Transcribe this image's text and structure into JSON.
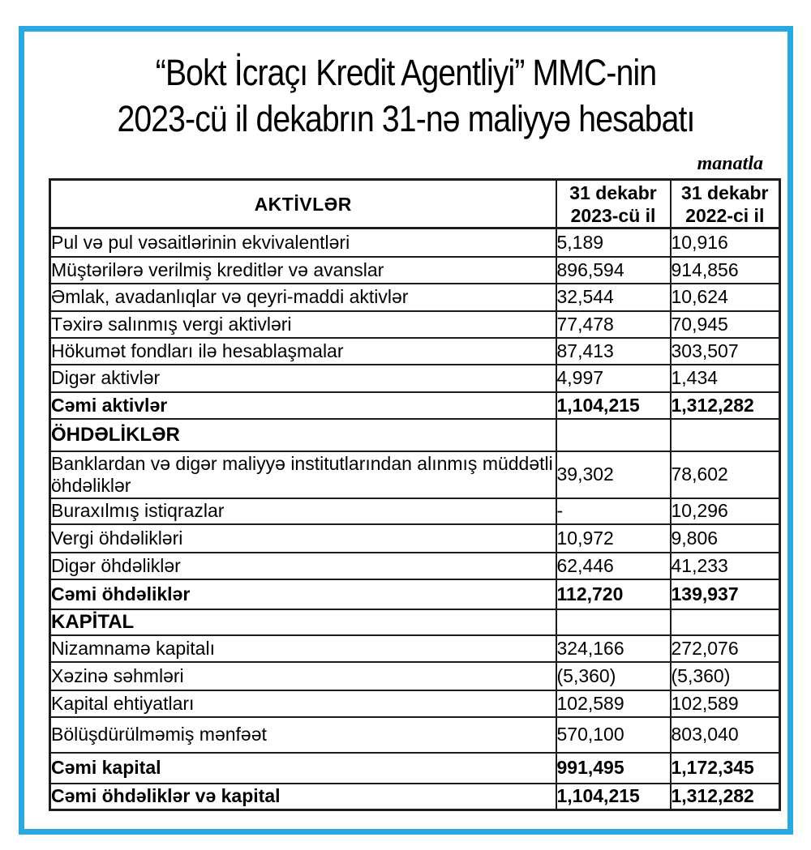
{
  "title": {
    "line1": "“Bokt İcraçı Kredit Agentliyi” MMC-nin",
    "line2": "2023-cü il dekabrın 31-nə maliyyə hesabatı"
  },
  "currency_note": "manatla",
  "colors": {
    "frame_blue": "#29A9E1",
    "table_border": "#1c1c1c",
    "text": "#000000"
  },
  "table": {
    "header": {
      "assets_label": "AKTİVLƏR",
      "col_2023": "31 dekabr\n2023-cü il",
      "col_2022": "31 dekabr\n2022-ci il"
    },
    "rows": [
      {
        "label": "Pul və pul vəsaitlərinin ekvivalentləri",
        "v2023": "5,189",
        "v2022": "10,916",
        "type": "data"
      },
      {
        "label": "Müştərilərə verilmiş kreditlər və avanslar",
        "v2023": "896,594",
        "v2022": "914,856",
        "type": "data"
      },
      {
        "label": "Əmlak, avadanlıqlar və qeyri-maddi aktivlər",
        "v2023": "32,544",
        "v2022": "10,624",
        "type": "data"
      },
      {
        "label": "Təxirə salınmış vergi aktivləri",
        "v2023": "77,478",
        "v2022": "70,945",
        "type": "data"
      },
      {
        "label": "Hökumət fondları ilə hesablaşmalar",
        "v2023": "87,413",
        "v2022": "303,507",
        "type": "data"
      },
      {
        "label": "Digər aktivlər",
        "v2023": "4,997",
        "v2022": "1,434",
        "type": "data"
      },
      {
        "label": "Cəmi aktivlər",
        "v2023": "1,104,215",
        "v2022": "1,312,282",
        "type": "total"
      },
      {
        "label": "ÖHDƏLİKLƏR",
        "v2023": "",
        "v2022": "",
        "type": "section"
      },
      {
        "label": "Banklardan və digər maliyyə institutlarından alınmış müddətli öhdəliklər",
        "v2023": "39,302",
        "v2022": "78,602",
        "type": "data"
      },
      {
        "label": "Buraxılmış istiqrazlar",
        "v2023": "-",
        "v2022": "10,296",
        "type": "data"
      },
      {
        "label": "Vergi öhdəlikləri",
        "v2023": "10,972",
        "v2022": "9,806",
        "type": "data"
      },
      {
        "label": "Digər öhdəliklər",
        "v2023": "62,446",
        "v2022": "41,233",
        "type": "data"
      },
      {
        "label": "Cəmi öhdəliklər",
        "v2023": "112,720",
        "v2022": "139,937",
        "type": "total"
      },
      {
        "label": "KAPİTAL",
        "v2023": "",
        "v2022": "",
        "type": "section"
      },
      {
        "label": "Nizamnamə kapitalı",
        "v2023": "324,166",
        "v2022": "272,076",
        "type": "data"
      },
      {
        "label": "Xəzinə səhmləri",
        "v2023": "(5,360)",
        "v2022": "(5,360)",
        "type": "data"
      },
      {
        "label": "Kapital ehtiyatları",
        "v2023": "102,589",
        "v2022": "102,589",
        "type": "data"
      },
      {
        "label": "Bölüşdürülməmiş mənfəət",
        "v2023": "570,100",
        "v2022": "803,040",
        "type": "data"
      },
      {
        "label": "Cəmi kapital",
        "v2023": "991,495",
        "v2022": "1,172,345",
        "type": "total"
      },
      {
        "label": "Cəmi öhdəliklər və kapital",
        "v2023": "1,104,215",
        "v2022": "1,312,282",
        "type": "total"
      }
    ]
  }
}
